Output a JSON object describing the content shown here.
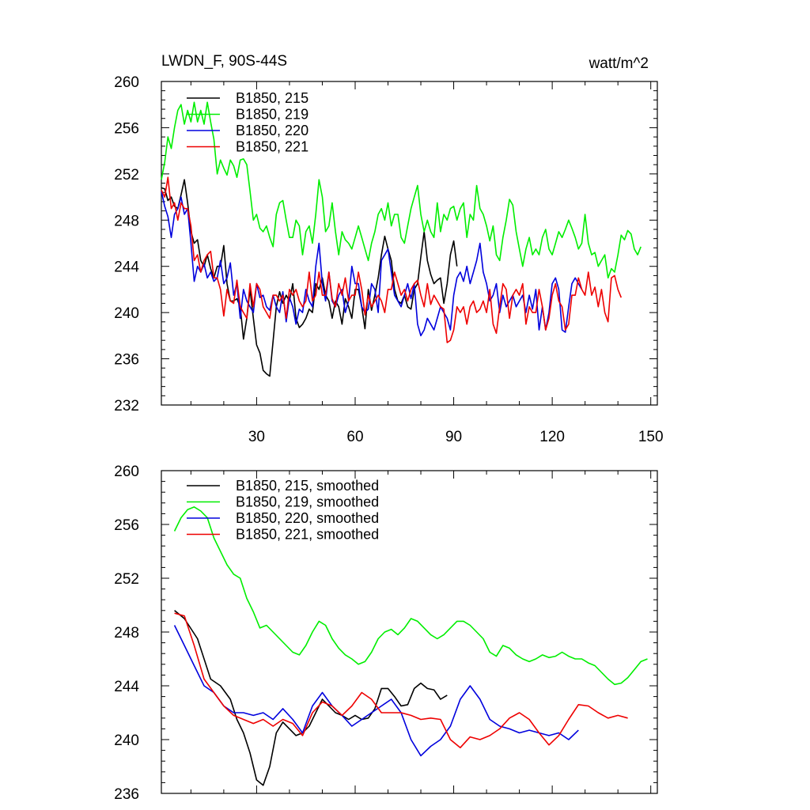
{
  "page": {
    "title": "LWDN_F, 90S-44S",
    "units": "watt/m^2"
  },
  "chart_data": [
    {
      "type": "line",
      "title": "LWDN_F, 90S-44S",
      "units": "watt/m^2",
      "xlabel": "",
      "ylabel": "",
      "xlim": [
        1,
        152
      ],
      "ylim": [
        232,
        260
      ],
      "xticks": [
        30,
        60,
        90,
        120,
        150
      ],
      "yticks": [
        232,
        236,
        240,
        244,
        248,
        252,
        256,
        260
      ],
      "legend_position": "top-left",
      "series": [
        {
          "name": "B1850, 215",
          "color": "#000000",
          "x_start": 1,
          "values": [
            250.8,
            250.7,
            249.7,
            250.0,
            249.2,
            249.0,
            250.2,
            251.5,
            249.5,
            247.0,
            246.0,
            246.3,
            244.5,
            244.0,
            245.0,
            243.8,
            243.0,
            244.0,
            244.0,
            245.8,
            242.5,
            241.0,
            241.0,
            241.2,
            240.5,
            237.7,
            239.5,
            242.0,
            239.5,
            237.2,
            236.5,
            235.0,
            234.7,
            234.5,
            237.5,
            240.5,
            241.8,
            240.8,
            241.5,
            241.0,
            242.5,
            239.5,
            238.7,
            239.0,
            239.5,
            240.3,
            240.0,
            242.5,
            242.0,
            243.0,
            241.5,
            241.0,
            239.5,
            241.0,
            240.5,
            239.0,
            241.2,
            240.5,
            239.5,
            242.0,
            242.0,
            240.5,
            238.6,
            242.0,
            240.2,
            241.5,
            243.0,
            245.0,
            246.6,
            245.5,
            244.5,
            242.0,
            241.0,
            240.8,
            241.5,
            240.5,
            240.3,
            242.0,
            242.5,
            244.8,
            247.0,
            244.5,
            243.3,
            242.5,
            242.8,
            243.0,
            240.8,
            242.5,
            245.0,
            246.2,
            244.0
          ]
        },
        {
          "name": "B1850, 219",
          "color": "#00ee00",
          "x_start": 1,
          "values": [
            251.5,
            253.0,
            255.2,
            254.2,
            256.0,
            257.5,
            258.0,
            256.3,
            257.5,
            256.5,
            258.2,
            256.5,
            257.5,
            256.3,
            258.2,
            256.5,
            255.0,
            252.0,
            253.2,
            252.5,
            251.9,
            253.2,
            252.7,
            251.7,
            253.2,
            253.3,
            252.8,
            250.5,
            248.0,
            248.5,
            247.3,
            247.0,
            247.5,
            246.5,
            245.7,
            248.5,
            249.5,
            249.7,
            248.0,
            246.5,
            246.5,
            248.0,
            247.5,
            245.0,
            247.0,
            247.5,
            246.0,
            248.5,
            251.5,
            250.0,
            247.0,
            247.5,
            249.5,
            247.0,
            245.0,
            247.0,
            246.3,
            246.0,
            245.5,
            246.5,
            247.5,
            246.5,
            245.5,
            244.5,
            246.0,
            247.0,
            248.5,
            249.0,
            248.0,
            249.5,
            247.5,
            248.5,
            248.5,
            246.5,
            246.0,
            247.5,
            249.0,
            250.0,
            251.0,
            248.5,
            247.0,
            248.0,
            247.0,
            246.5,
            249.5,
            247.0,
            248.5,
            248.0,
            249.0,
            249.2,
            248.0,
            249.0,
            249.5,
            246.5,
            248.5,
            248.0,
            251.0,
            249.0,
            248.5,
            247.5,
            246.2,
            247.5,
            245.0,
            244.5,
            246.5,
            248.0,
            249.8,
            249.3,
            247.0,
            245.5,
            244.0,
            245.5,
            246.5,
            245.0,
            245.5,
            245.0,
            246.5,
            247.2,
            245.5,
            245.0,
            246.0,
            247.0,
            246.5,
            247.2,
            248.0,
            247.3,
            246.5,
            245.5,
            246.0,
            248.5,
            246.0,
            245.0,
            245.2,
            244.0,
            244.5,
            245.0,
            243.0,
            243.8,
            243.5,
            245.0,
            246.7,
            246.3,
            247.1,
            246.8,
            245.5,
            245.0,
            245.7
          ]
        },
        {
          "name": "B1850, 220",
          "color": "#0000dd",
          "x_start": 1,
          "values": [
            250.5,
            249.2,
            248.3,
            246.5,
            248.5,
            249.0,
            250.0,
            248.5,
            249.0,
            246.0,
            242.7,
            244.0,
            243.5,
            244.2,
            243.0,
            243.5,
            242.7,
            243.0,
            244.5,
            242.5,
            243.0,
            244.3,
            241.5,
            242.5,
            239.5,
            242.0,
            241.0,
            240.5,
            240.0,
            242.5,
            241.3,
            241.5,
            240.5,
            240.2,
            241.5,
            240.5,
            240.0,
            241.8,
            239.2,
            241.3,
            240.5,
            239.0,
            240.3,
            240.0,
            242.0,
            241.0,
            240.5,
            244.0,
            246.0,
            242.5,
            241.0,
            243.5,
            241.0,
            240.5,
            241.5,
            242.0,
            240.0,
            241.0,
            244.0,
            242.5,
            242.5,
            240.5,
            240.0,
            240.3,
            242.5,
            242.0,
            240.0,
            244.5,
            245.0,
            245.5,
            243.5,
            241.5,
            241.0,
            240.5,
            241.5,
            242.5,
            241.2,
            242.5,
            239.0,
            238.0,
            238.5,
            239.5,
            239.0,
            238.5,
            239.5,
            240.5,
            240.0,
            239.5,
            238.5,
            241.5,
            243.0,
            243.5,
            242.7,
            244.0,
            242.5,
            243.5,
            244.5,
            246.0,
            243.5,
            242.5,
            241.0,
            241.5,
            242.5,
            240.0,
            241.5,
            240.5,
            241.0,
            241.5,
            240.5,
            241.0,
            241.5,
            240.0,
            241.5,
            240.3,
            242.0,
            238.5,
            240.5,
            238.5,
            240.0,
            242.5,
            243.0,
            242.0,
            238.5,
            238.3,
            240.5,
            242.5,
            243.0,
            242.5,
            242.0
          ]
        },
        {
          "name": "B1850, 221",
          "color": "#ee0000",
          "x_start": 1,
          "values": [
            250.6,
            250.0,
            251.7,
            249.0,
            249.5,
            248.0,
            249.5,
            249.0,
            249.0,
            247.5,
            244.5,
            245.0,
            243.5,
            244.5,
            245.0,
            245.3,
            243.0,
            243.0,
            242.0,
            239.7,
            242.0,
            241.0,
            240.8,
            242.8,
            240.5,
            240.0,
            239.5,
            242.5,
            240.5,
            242.5,
            242.0,
            240.5,
            240.0,
            239.5,
            241.5,
            241.5,
            241.0,
            241.5,
            239.5,
            242.0,
            241.5,
            242.0,
            241.0,
            240.5,
            241.0,
            243.5,
            241.0,
            241.5,
            243.5,
            241.5,
            241.5,
            243.5,
            241.2,
            240.5,
            242.5,
            241.5,
            243.0,
            241.0,
            241.5,
            241.5,
            243.5,
            242.0,
            239.8,
            241.5,
            240.5,
            241.0,
            241.5,
            241.0,
            240.0,
            242.0,
            242.0,
            243.5,
            242.5,
            241.5,
            242.0,
            241.0,
            242.0,
            242.5,
            242.8,
            241.5,
            240.5,
            242.5,
            240.7,
            241.5,
            241.0,
            240.5,
            240.3,
            237.4,
            237.6,
            238.5,
            240.5,
            240.0,
            240.5,
            239.0,
            240.5,
            241.0,
            240.0,
            240.3,
            241.0,
            240.0,
            242.0,
            239.0,
            238.2,
            240.5,
            242.5,
            242.0,
            239.5,
            241.5,
            242.0,
            241.5,
            242.5,
            239.0,
            240.5,
            240.0,
            240.0,
            242.0,
            240.5,
            238.5,
            239.5,
            241.5,
            242.5,
            241.0,
            240.5,
            238.5,
            239.0,
            241.5,
            241.5,
            243.0,
            242.0,
            241.5,
            243.5,
            241.5,
            242.2,
            240.5,
            242.0,
            240.0,
            239.2,
            243.0,
            243.2,
            242.0,
            241.3
          ]
        }
      ]
    },
    {
      "type": "line",
      "title": "",
      "xlabel": "",
      "ylabel": "",
      "xlim": [
        1,
        152
      ],
      "ylim": [
        236,
        260
      ],
      "xticks": [
        30,
        60,
        90,
        120,
        150
      ],
      "yticks": [
        236,
        240,
        244,
        248,
        252,
        256,
        260
      ],
      "legend_position": "top-left",
      "series": [
        {
          "name": "B1850, 215, smoothed",
          "color": "#000000",
          "x": [
            5,
            8,
            12,
            16,
            19,
            22,
            24,
            26,
            28,
            30,
            32,
            34,
            36,
            38,
            40,
            42,
            44,
            46,
            48,
            50,
            52,
            54,
            56,
            58,
            60,
            62,
            64,
            66,
            68,
            70,
            72,
            74,
            76,
            78,
            80,
            82,
            84,
            86,
            88
          ],
          "values": [
            249.6,
            249.0,
            247.5,
            244.5,
            244.0,
            243.0,
            241.5,
            240.5,
            239.0,
            237.0,
            236.6,
            238.0,
            240.5,
            241.3,
            240.8,
            240.3,
            240.5,
            241.0,
            242.0,
            243.0,
            242.5,
            242.0,
            241.8,
            241.5,
            241.8,
            241.5,
            241.6,
            242.3,
            243.8,
            243.8,
            243.2,
            242.5,
            242.6,
            243.8,
            244.2,
            243.8,
            243.7,
            243.0,
            243.3
          ]
        },
        {
          "name": "B1850, 219, smoothed",
          "color": "#00ee00",
          "x": [
            5,
            7,
            9,
            11,
            13,
            15,
            17,
            19,
            21,
            23,
            25,
            27,
            29,
            31,
            33,
            35,
            37,
            39,
            41,
            43,
            45,
            47,
            49,
            51,
            53,
            55,
            57,
            59,
            61,
            63,
            65,
            67,
            69,
            71,
            73,
            75,
            77,
            79,
            81,
            83,
            85,
            87,
            89,
            91,
            93,
            95,
            97,
            99,
            101,
            103,
            105,
            107,
            109,
            111,
            113,
            115,
            117,
            119,
            121,
            123,
            125,
            127,
            129,
            131,
            133,
            135,
            137,
            139,
            141,
            143,
            145,
            147,
            149
          ],
          "values": [
            255.5,
            256.5,
            257.1,
            257.3,
            257.0,
            256.5,
            255.0,
            254.0,
            253.0,
            252.3,
            252.0,
            250.5,
            249.5,
            248.3,
            248.5,
            248.0,
            247.5,
            247.0,
            246.5,
            246.3,
            247.0,
            248.0,
            248.8,
            248.5,
            247.5,
            246.8,
            246.3,
            246.0,
            245.6,
            245.8,
            246.5,
            247.5,
            248.0,
            248.2,
            247.8,
            248.3,
            249.0,
            248.8,
            248.3,
            247.8,
            247.5,
            247.8,
            248.3,
            248.8,
            248.8,
            248.5,
            248.0,
            247.5,
            246.5,
            246.2,
            247.0,
            246.8,
            246.3,
            246.0,
            245.8,
            246.0,
            246.3,
            246.1,
            246.2,
            246.5,
            246.2,
            246.0,
            246.0,
            245.7,
            245.5,
            245.0,
            244.5,
            244.1,
            244.2,
            244.6,
            245.2,
            245.8,
            246.0
          ]
        },
        {
          "name": "B1850, 220, smoothed",
          "color": "#0000dd",
          "x": [
            5,
            8,
            11,
            14,
            17,
            20,
            23,
            26,
            29,
            32,
            35,
            38,
            41,
            44,
            47,
            50,
            53,
            56,
            59,
            62,
            65,
            68,
            71,
            74,
            77,
            80,
            83,
            86,
            89,
            92,
            95,
            98,
            101,
            104,
            107,
            110,
            113,
            116,
            119,
            122,
            125,
            128
          ],
          "values": [
            248.5,
            247.0,
            245.5,
            244.0,
            243.5,
            242.5,
            242.0,
            242.0,
            241.8,
            242.0,
            241.5,
            242.3,
            241.5,
            240.5,
            242.5,
            243.5,
            242.5,
            241.8,
            241.0,
            241.5,
            242.0,
            242.5,
            243.0,
            242.0,
            240.0,
            238.8,
            239.5,
            240.0,
            241.0,
            243.0,
            244.0,
            243.0,
            241.5,
            241.0,
            240.8,
            240.5,
            240.7,
            240.5,
            240.3,
            240.5,
            240.0,
            240.7
          ]
        },
        {
          "name": "B1850, 221, smoothed",
          "color": "#ee0000",
          "x": [
            5,
            8,
            11,
            14,
            17,
            20,
            23,
            26,
            29,
            32,
            35,
            38,
            41,
            44,
            47,
            50,
            53,
            56,
            59,
            62,
            65,
            68,
            71,
            74,
            77,
            80,
            83,
            86,
            89,
            92,
            95,
            98,
            101,
            104,
            107,
            110,
            113,
            116,
            119,
            122,
            125,
            128,
            131,
            134,
            137,
            140,
            143
          ],
          "values": [
            249.4,
            249.2,
            247.0,
            244.5,
            243.5,
            242.5,
            241.8,
            241.5,
            241.2,
            241.5,
            241.0,
            241.5,
            241.2,
            240.3,
            242.0,
            242.8,
            242.5,
            241.8,
            242.5,
            243.5,
            243.0,
            242.0,
            242.0,
            242.0,
            241.8,
            241.5,
            241.6,
            241.5,
            240.0,
            239.4,
            240.2,
            240.0,
            240.3,
            240.8,
            241.6,
            242.0,
            241.5,
            240.5,
            239.6,
            240.3,
            241.5,
            242.6,
            242.5,
            242.0,
            241.6,
            241.8,
            241.6
          ]
        }
      ]
    }
  ]
}
